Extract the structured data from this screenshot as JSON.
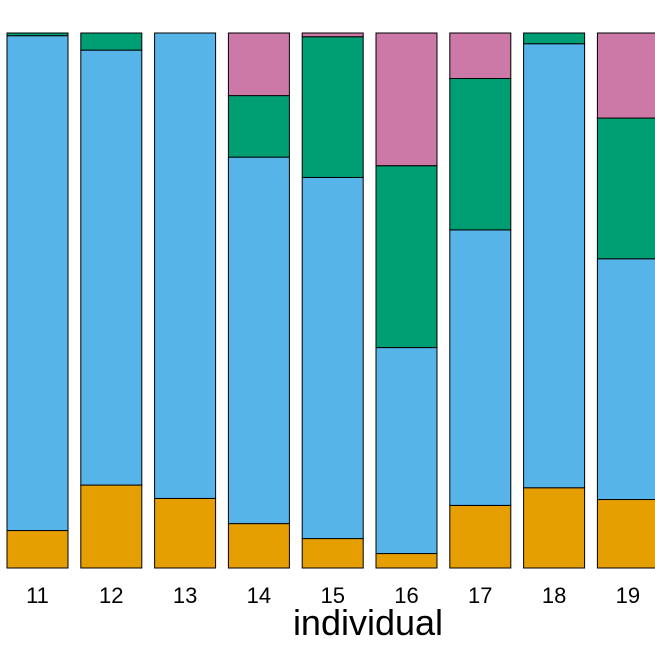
{
  "chart_data": {
    "type": "bar",
    "stacked": true,
    "normalized": true,
    "xlabel": "individual",
    "ylabel": "",
    "ylim": [
      0,
      1
    ],
    "grid": false,
    "categories": [
      "11",
      "12",
      "13",
      "14",
      "15",
      "16",
      "17",
      "18",
      "19"
    ],
    "series": [
      {
        "color": "#E69F00",
        "values": [
          0.07,
          0.155,
          0.13,
          0.083,
          0.055,
          0.027,
          0.117,
          0.15,
          0.128
        ]
      },
      {
        "color": "#56B4E9",
        "values": [
          0.925,
          0.813,
          0.87,
          0.685,
          0.675,
          0.385,
          0.515,
          0.83,
          0.45
        ]
      },
      {
        "color": "#009E73",
        "values": [
          0.005,
          0.032,
          0.0,
          0.115,
          0.263,
          0.34,
          0.283,
          0.02,
          0.263
        ]
      },
      {
        "color": "#CC79A7",
        "values": [
          0.0,
          0.0,
          0.0,
          0.117,
          0.007,
          0.248,
          0.085,
          0.0,
          0.159
        ]
      }
    ]
  }
}
